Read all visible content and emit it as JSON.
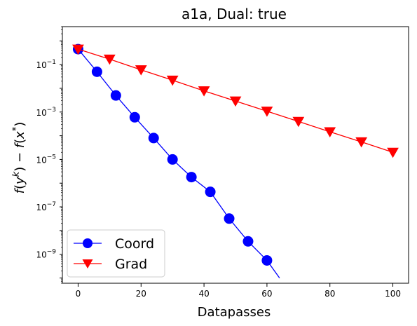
{
  "chart_data": {
    "type": "line",
    "title": "a1a, Dual: true",
    "xlabel": "Datapasses",
    "ylabel": "f(y^k) − f(x^*)",
    "xlim": [
      -5,
      105
    ],
    "ylim": [
      6e-11,
      4.0
    ],
    "yscale": "log",
    "x_ticks": [
      0,
      20,
      40,
      60,
      80,
      100
    ],
    "y_ticks": [
      1e-09,
      1e-07,
      1e-05,
      0.001,
      0.1
    ],
    "y_tick_labels": [
      {
        "base": "10",
        "exp": "−9"
      },
      {
        "base": "10",
        "exp": "−7"
      },
      {
        "base": "10",
        "exp": "−5"
      },
      {
        "base": "10",
        "exp": "−3"
      },
      {
        "base": "10",
        "exp": "−1"
      }
    ],
    "grid": false,
    "legend_position": "lower-left",
    "series": [
      {
        "name": "Coord",
        "color": "#0000ff",
        "marker": "circle",
        "x": [
          0,
          6,
          12,
          18,
          24,
          30,
          36,
          42,
          48,
          54,
          60,
          64
        ],
        "y": [
          0.45,
          0.05,
          0.005,
          0.0006,
          8e-05,
          1e-05,
          1.8e-06,
          4.3e-07,
          3.2e-08,
          3.5e-09,
          5.5e-10,
          1e-10
        ],
        "marker_x": [
          0,
          6,
          12,
          18,
          24,
          30,
          36,
          42,
          48,
          54,
          60
        ]
      },
      {
        "name": "Grad",
        "color": "#ff0000",
        "marker": "triangle-down",
        "x": [
          0,
          10,
          20,
          30,
          40,
          50,
          60,
          70,
          80,
          90,
          100
        ],
        "y": [
          0.45,
          0.17,
          0.06,
          0.022,
          0.0078,
          0.0029,
          0.00108,
          0.0004,
          0.000147,
          5.5e-05,
          2e-05
        ]
      }
    ]
  }
}
